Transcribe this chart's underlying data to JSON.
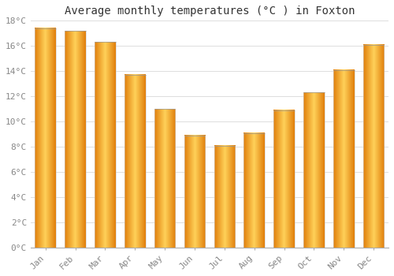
{
  "title": "Average monthly temperatures (°C ) in Foxton",
  "months": [
    "Jan",
    "Feb",
    "Mar",
    "Apr",
    "May",
    "Jun",
    "Jul",
    "Aug",
    "Sep",
    "Oct",
    "Nov",
    "Dec"
  ],
  "values": [
    17.4,
    17.2,
    16.3,
    13.7,
    11.0,
    8.9,
    8.1,
    9.1,
    10.9,
    12.3,
    14.1,
    16.1
  ],
  "bar_color_edge": "#E08000",
  "bar_color_mid": "#FFD060",
  "bar_color_main": "#FFA820",
  "ylim": [
    0,
    18
  ],
  "yticks": [
    0,
    2,
    4,
    6,
    8,
    10,
    12,
    14,
    16,
    18
  ],
  "ytick_labels": [
    "0°C",
    "2°C",
    "4°C",
    "6°C",
    "8°C",
    "10°C",
    "12°C",
    "14°C",
    "16°C",
    "18°C"
  ],
  "background_color": "#ffffff",
  "grid_color": "#dddddd",
  "title_fontsize": 10,
  "tick_fontsize": 8,
  "tick_color": "#888888",
  "title_color": "#333333",
  "bar_width": 0.7,
  "n_gradient_steps": 40
}
